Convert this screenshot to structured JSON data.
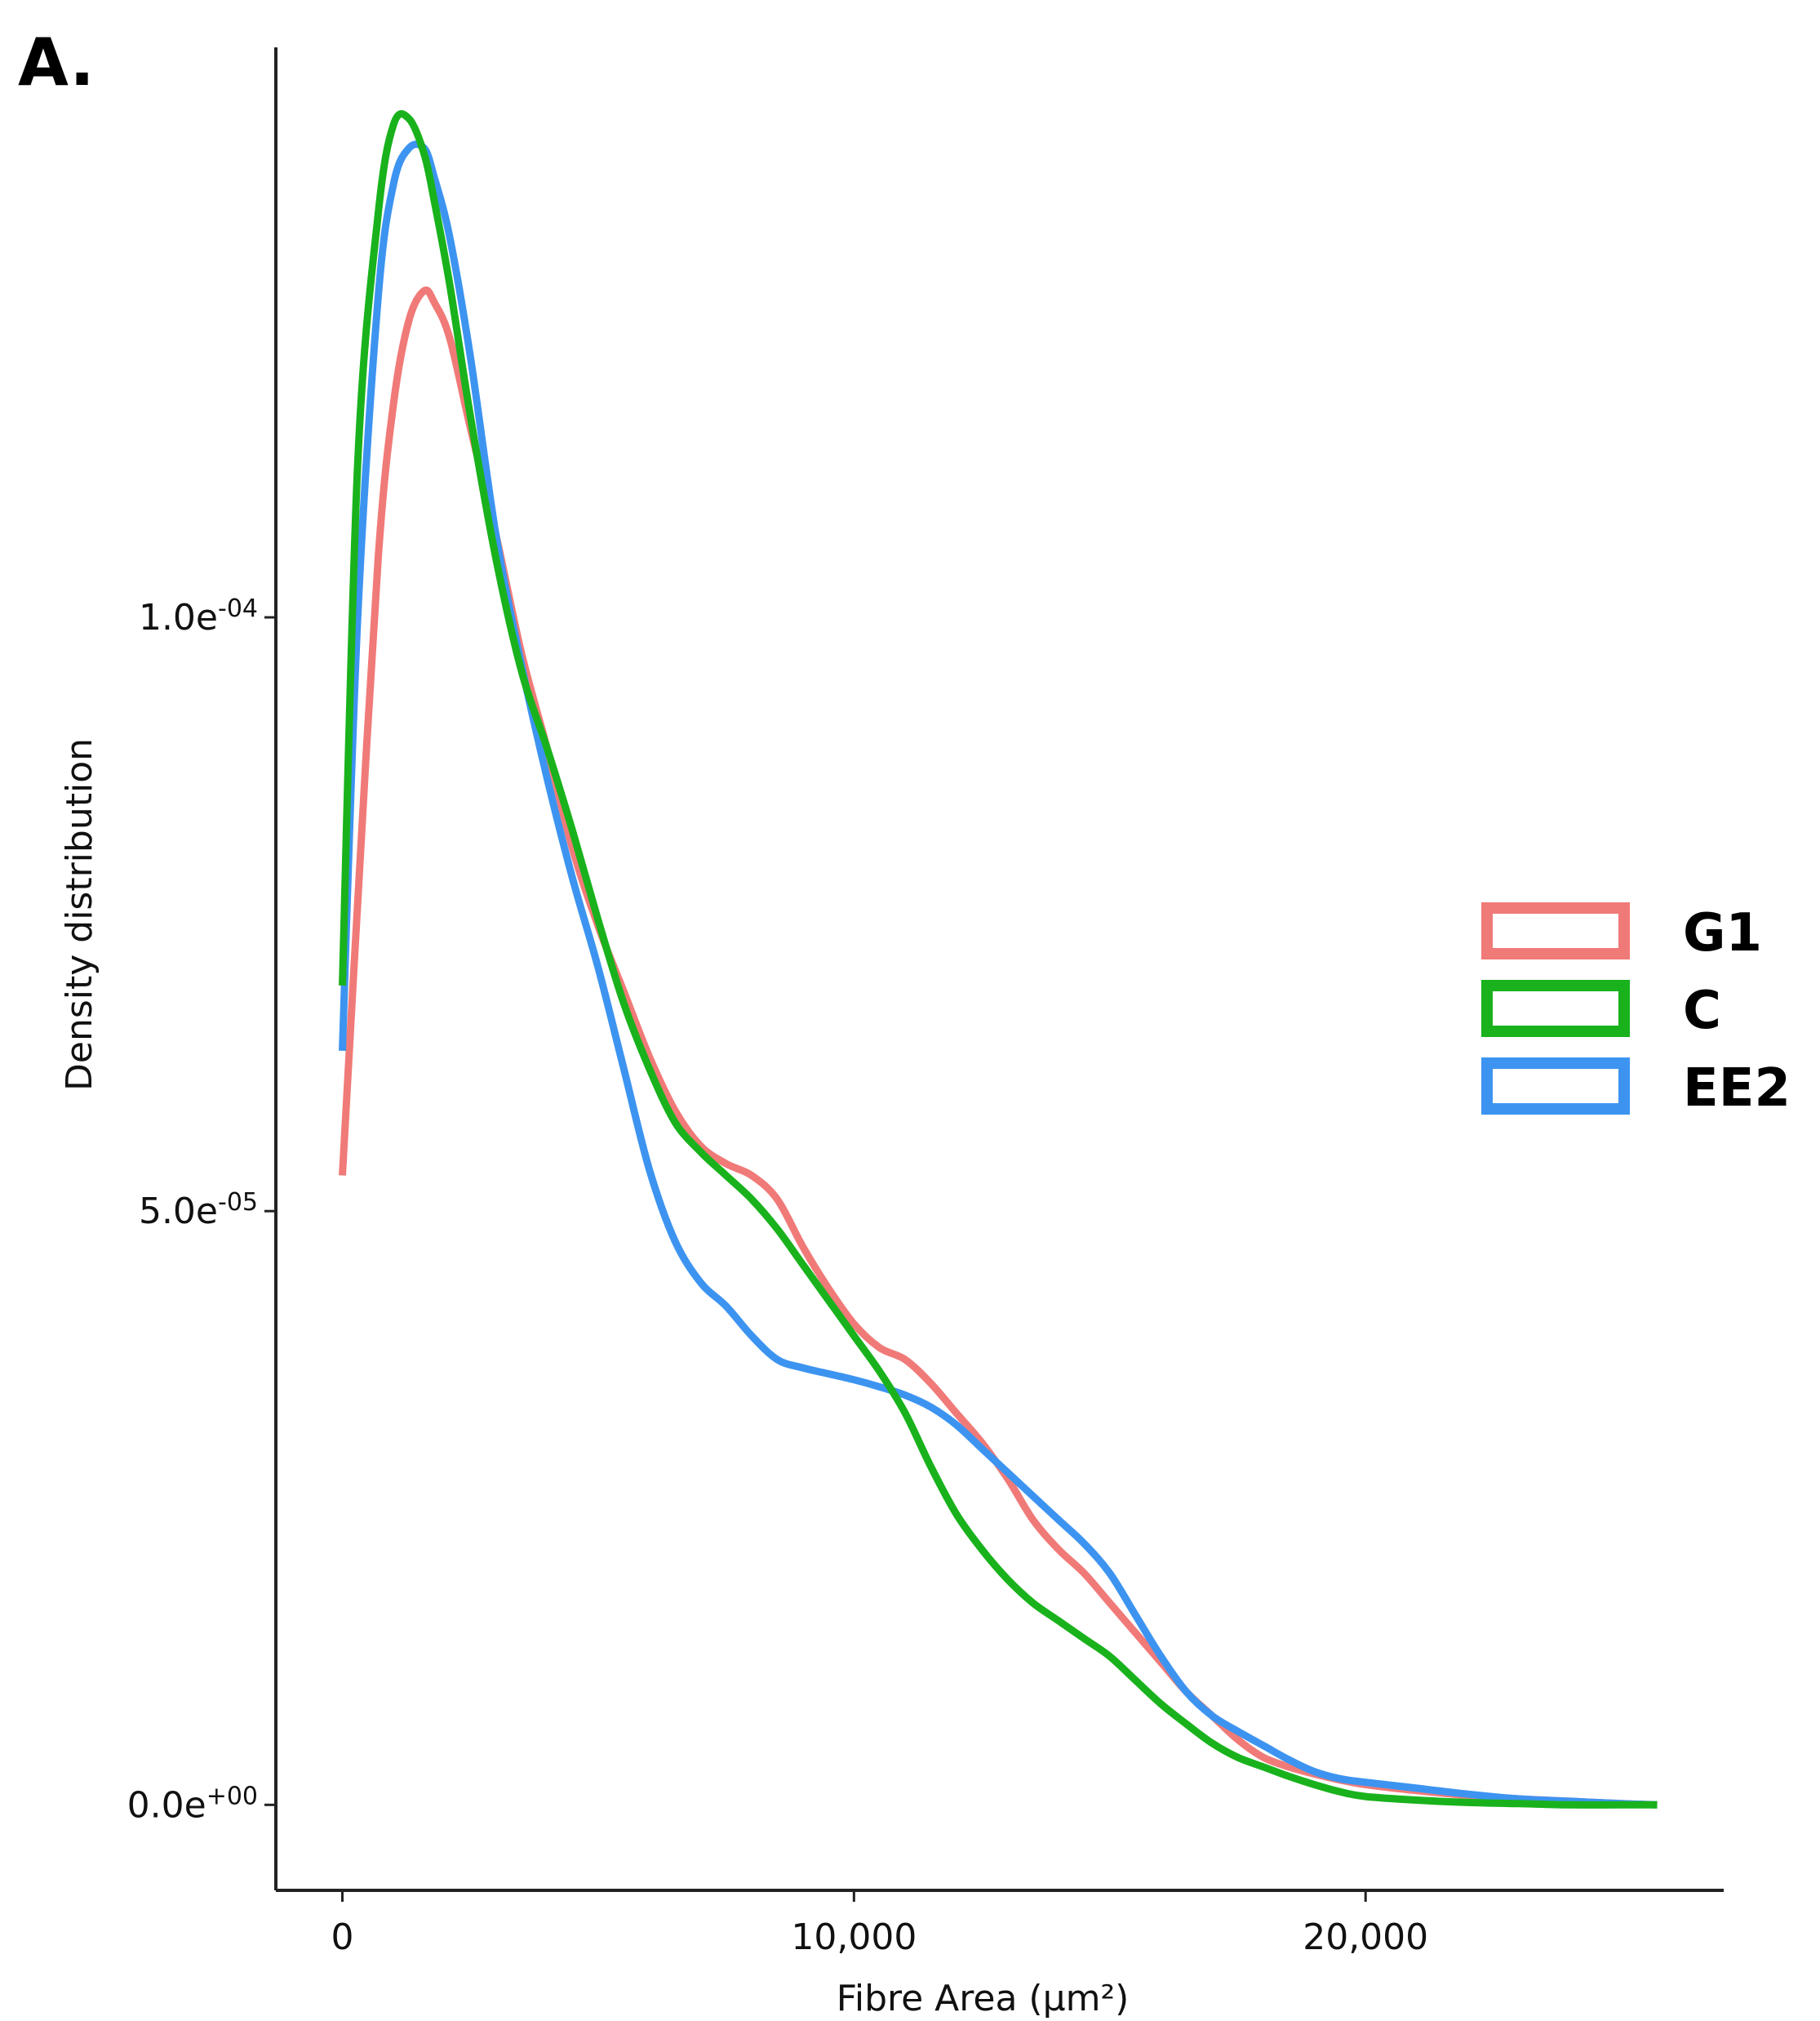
{
  "panel_label": "A.",
  "chart_data": {
    "type": "line",
    "title": "",
    "xlabel": "Fibre Area (µm²)",
    "ylabel": "Density distribution",
    "xlim": [
      -1300,
      27000
    ],
    "ylim": [
      -7.2e-06,
      0.000148
    ],
    "xticks": [
      {
        "value": 0,
        "label": "0"
      },
      {
        "value": 10000,
        "label": "10,000"
      },
      {
        "value": 20000,
        "label": "20,000"
      }
    ],
    "yticks": [
      {
        "value": 0,
        "label": "0.0e+00"
      },
      {
        "value": 5e-05,
        "label": "5.0e-05"
      },
      {
        "value": 0.0001,
        "label": "1.0e-04"
      }
    ],
    "legend_position": "right",
    "series": [
      {
        "name": "G1",
        "color": "#f07a78",
        "x": [
          0,
          300,
          700,
          1000,
          1300,
          1600,
          1800,
          2100,
          2500,
          3000,
          3500,
          4000,
          4500,
          5000,
          5500,
          6000,
          6500,
          7000,
          7500,
          8000,
          8500,
          9000,
          9500,
          10000,
          10500,
          11000,
          11500,
          12000,
          12500,
          13000,
          13500,
          14000,
          14500,
          15000,
          15500,
          16000,
          16500,
          17000,
          17500,
          18000,
          18500,
          19000,
          19500,
          20000,
          21000,
          22000,
          23000,
          24000,
          25000,
          25700
        ],
        "y": [
          5.3e-05,
          7.6e-05,
          0.000105,
          0.000118,
          0.000125,
          0.0001275,
          0.0001265,
          0.0001235,
          0.000116,
          0.000107,
          9.7e-05,
          8.9e-05,
          8.05e-05,
          7.4e-05,
          6.85e-05,
          6.3e-05,
          5.85e-05,
          5.55e-05,
          5.4e-05,
          5.3e-05,
          5.1e-05,
          4.7e-05,
          4.35e-05,
          4.05e-05,
          3.85e-05,
          3.75e-05,
          3.55e-05,
          3.3e-05,
          3.05e-05,
          2.75e-05,
          2.4e-05,
          2.15e-05,
          1.95e-05,
          1.7e-05,
          1.45e-05,
          1.2e-05,
          9.5e-06,
          7.5e-06,
          5.5e-06,
          4e-06,
          3.2e-06,
          2.6e-06,
          2.1e-06,
          1.7e-06,
          1.2e-06,
          8e-07,
          5e-07,
          3e-07,
          1e-07,
          0
        ]
      },
      {
        "name": "C",
        "color": "#19b21c",
        "x": [
          0,
          300,
          700,
          1000,
          1300,
          1600,
          1800,
          2100,
          2500,
          3000,
          3500,
          4000,
          4500,
          5000,
          5500,
          6000,
          6500,
          7000,
          7500,
          8000,
          8500,
          9000,
          9500,
          10000,
          10500,
          11000,
          11500,
          12000,
          12500,
          13000,
          13500,
          14000,
          14500,
          15000,
          15500,
          16000,
          16500,
          17000,
          17500,
          18000,
          18500,
          19000,
          19500,
          20000,
          21000,
          22000,
          23000,
          24000,
          25000,
          25700
        ],
        "y": [
          6.9e-05,
          0.000113,
          0.000134,
          0.0001415,
          0.000142,
          0.000139,
          0.000135,
          0.000128,
          0.000117,
          0.000105,
          9.55e-05,
          8.9e-05,
          8.2e-05,
          7.45e-05,
          6.75e-05,
          6.2e-05,
          5.75e-05,
          5.5e-05,
          5.3e-05,
          5.1e-05,
          4.85e-05,
          4.55e-05,
          4.25e-05,
          3.95e-05,
          3.65e-05,
          3.3e-05,
          2.85e-05,
          2.45e-05,
          2.15e-05,
          1.9e-05,
          1.7e-05,
          1.55e-05,
          1.4e-05,
          1.25e-05,
          1.05e-05,
          8.5e-06,
          6.8e-06,
          5.2e-06,
          4e-06,
          3.2e-06,
          2.4e-06,
          1.7e-06,
          1.1e-06,
          7e-07,
          4e-07,
          2e-07,
          1e-07,
          0,
          0,
          0
        ]
      },
      {
        "name": "EE2",
        "color": "#3d94f0",
        "x": [
          0,
          300,
          700,
          1000,
          1300,
          1600,
          1800,
          2100,
          2500,
          3000,
          3500,
          4000,
          4500,
          5000,
          5500,
          6000,
          6500,
          7000,
          7500,
          8000,
          8500,
          9000,
          9500,
          10000,
          10500,
          11000,
          11500,
          12000,
          12500,
          13000,
          13500,
          14000,
          14500,
          15000,
          15500,
          16000,
          16500,
          17000,
          17500,
          18000,
          18500,
          19000,
          19500,
          20000,
          21000,
          22000,
          23000,
          24000,
          25000,
          25700
        ],
        "y": [
          6.35e-05,
          0.0001,
          0.000127,
          0.0001365,
          0.0001395,
          0.0001395,
          0.000137,
          0.000132,
          0.000122,
          0.000107,
          9.6e-05,
          8.65e-05,
          7.8e-05,
          7.05e-05,
          6.2e-05,
          5.35e-05,
          4.75e-05,
          4.4e-05,
          4.2e-05,
          3.95e-05,
          3.75e-05,
          3.68e-05,
          3.63e-05,
          3.58e-05,
          3.52e-05,
          3.45e-05,
          3.35e-05,
          3.2e-05,
          3e-05,
          2.8e-05,
          2.6e-05,
          2.4e-05,
          2.2e-05,
          1.95e-05,
          1.6e-05,
          1.25e-05,
          9.5e-06,
          7.5e-06,
          6.2e-06,
          5e-06,
          3.8e-06,
          2.8e-06,
          2.2e-06,
          1.9e-06,
          1.4e-06,
          9e-07,
          5e-07,
          3e-07,
          1e-07,
          0
        ]
      }
    ]
  }
}
